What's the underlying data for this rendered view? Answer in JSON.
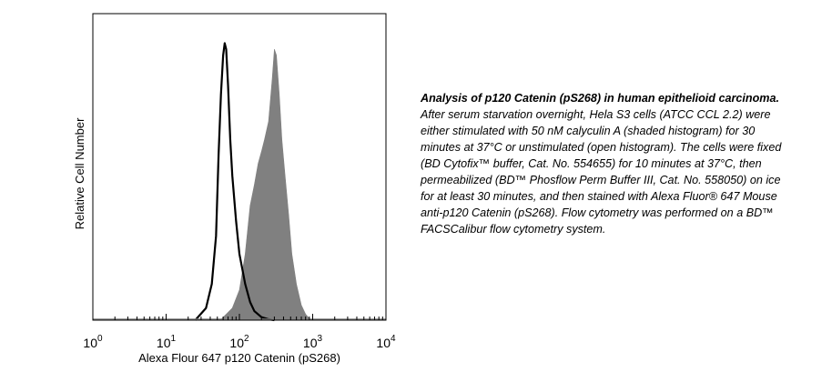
{
  "chart_data": {
    "type": "area",
    "title": "",
    "xlabel": "Alexa Flour 647 p120 Catenin (pS268)",
    "ylabel": "Relative Cell Number",
    "xscale": "log",
    "xlim": [
      1,
      10000
    ],
    "ylim": [
      0,
      100
    ],
    "x_ticks": [
      {
        "base": "10",
        "exp": "0",
        "value": 1
      },
      {
        "base": "10",
        "exp": "1",
        "value": 10
      },
      {
        "base": "10",
        "exp": "2",
        "value": 100
      },
      {
        "base": "10",
        "exp": "3",
        "value": 1000
      },
      {
        "base": "10",
        "exp": "4",
        "value": 10000
      }
    ],
    "grid": false,
    "legend": "none",
    "series": [
      {
        "style": "filled",
        "color": "#808080",
        "x": [
          55,
          80,
          100,
          120,
          140,
          160,
          180,
          200,
          220,
          250,
          280,
          300,
          320,
          350,
          380,
          420,
          470,
          520,
          600,
          700,
          800,
          900,
          1000
        ],
        "y": [
          0,
          4,
          10,
          22,
          38,
          45,
          52,
          56,
          60,
          66,
          80,
          90,
          88,
          75,
          60,
          48,
          35,
          22,
          12,
          5,
          2,
          0.5,
          0
        ]
      },
      {
        "style": "outline",
        "color": "#000000",
        "x": [
          25,
          35,
          42,
          48,
          52,
          56,
          60,
          63,
          66,
          70,
          75,
          80,
          90,
          100,
          120,
          140,
          160,
          200,
          250,
          300
        ],
        "y": [
          0,
          4,
          12,
          28,
          55,
          75,
          88,
          92,
          90,
          78,
          60,
          48,
          33,
          22,
          12,
          6,
          3,
          1,
          0.3,
          0
        ]
      }
    ]
  },
  "caption": {
    "lead": "Analysis of p120 Catenin (pS268) in human epithelioid carcinoma.",
    "body": "After serum starvation overnight, Hela S3 cells (ATCC CCL 2.2) were either stimulated with 50 nM calyculin A (shaded histogram) for 30 minutes at 37°C or unstimulated (open histogram).  The cells were fixed (BD Cytofix™ buffer, Cat. No. 554655) for 10 minutes at 37°C, then permeabilized (BD™ Phosflow Perm Buffer III, Cat. No. 558050) on ice for at least 30 minutes, and then stained with Alexa Fluor® 647 Mouse anti-p120 Catenin (pS268).  Flow cytometry was performed on a BD™ FACSCalibur flow cytometry system."
  }
}
